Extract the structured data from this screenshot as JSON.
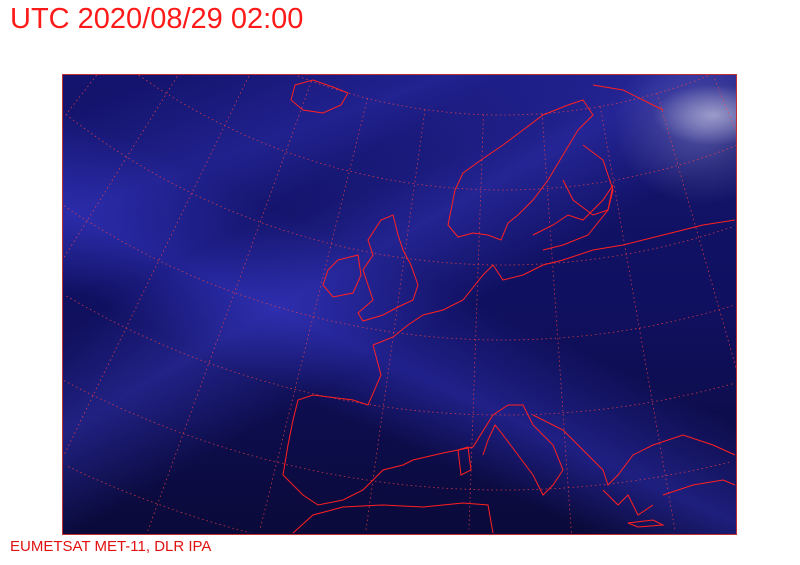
{
  "title": "UTC 2020/08/29 02:00",
  "credit": "EUMETSAT MET-11, DLR IPA",
  "colors": {
    "overlay": "#ff2020",
    "background": "#101060",
    "text": "#ff1a1a"
  },
  "map": {
    "type": "satellite-infrared-composite",
    "region": "Europe / North Atlantic",
    "overlays": [
      "coastlines",
      "lat-lon-graticule"
    ]
  }
}
